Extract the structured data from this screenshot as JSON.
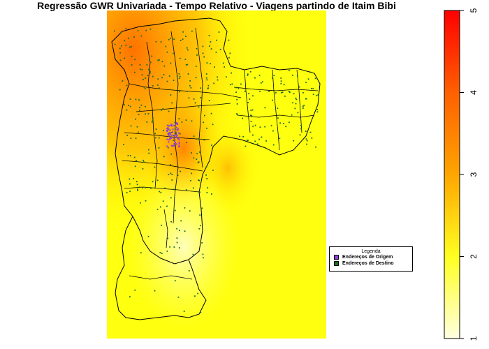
{
  "title": "Regressão GWR Univariada - Tempo Relativo - Viagens partindo de Itaim Bibi",
  "legend": {
    "title": "Legenda",
    "items": [
      {
        "label": "Endereços de Origem",
        "color": "#8b3fd6"
      },
      {
        "label": "Endereços de Destino",
        "color": "#1a6b2a"
      }
    ]
  },
  "color_scale": {
    "min": 1,
    "max": 5,
    "ticks": [
      "1",
      "2",
      "3",
      "4",
      "5"
    ],
    "colors": [
      "#ffffe0",
      "#ffff00",
      "#ffa000",
      "#ff0000"
    ]
  },
  "colors": {
    "map_base": "#ffff20",
    "hot": "#ff6a00",
    "boundary": "#000000"
  }
}
